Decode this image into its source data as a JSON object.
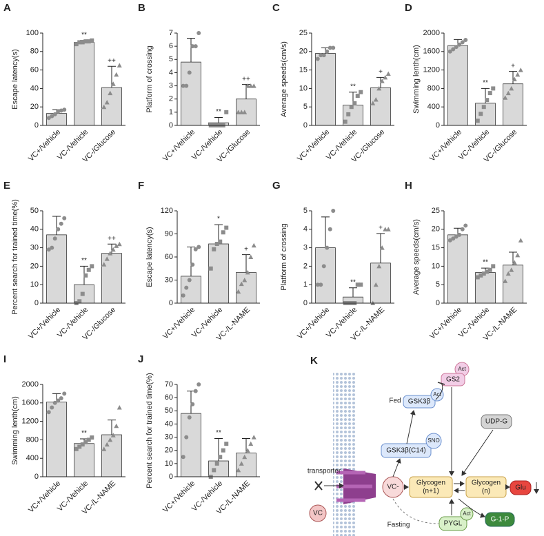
{
  "chart_data": [
    {
      "type": "bar",
      "panel": "A",
      "ylabel": "Escape latency(s)",
      "categories": [
        "VC+/Vehicle",
        "VC-/Vehicle",
        "VC-/Glucose"
      ],
      "values": [
        13,
        90,
        41
      ],
      "errors": [
        4,
        2,
        23
      ],
      "annotations": [
        null,
        "**",
        "++"
      ],
      "points": [
        [
          8,
          10,
          12,
          15,
          16,
          17
        ],
        [
          88,
          90,
          90,
          91,
          91,
          92
        ],
        [
          20,
          25,
          35,
          45,
          55,
          65
        ]
      ],
      "ylim": [
        0,
        100
      ],
      "yticks": [
        0,
        20,
        40,
        60,
        80,
        100
      ],
      "color": "#d9d9d9",
      "point_color": "#8c8c8c"
    },
    {
      "type": "bar",
      "panel": "B",
      "ylabel": "Platform of crossing",
      "categories": [
        "VC+/Vehicle",
        "VC-/Vehicle",
        "VC-/Glucose"
      ],
      "values": [
        4.8,
        0.2,
        2
      ],
      "errors": [
        1.8,
        0.4,
        1.1
      ],
      "annotations": [
        null,
        "**",
        "++"
      ],
      "points": [
        [
          3,
          3,
          4,
          6,
          6,
          7
        ],
        [
          0,
          0,
          0,
          0,
          0,
          1
        ],
        [
          1,
          1,
          1,
          3,
          3,
          3
        ]
      ],
      "ylim": [
        0,
        7
      ],
      "yticks": [
        0,
        1,
        2,
        3,
        4,
        5,
        6,
        7
      ],
      "color": "#d9d9d9",
      "point_color": "#8c8c8c"
    },
    {
      "type": "bar",
      "panel": "C",
      "ylabel": "Average speeds(cm/s)",
      "categories": [
        "VC+/Vehicle",
        "VC-/Vehicle",
        "VC-/Glucose"
      ],
      "values": [
        19.5,
        5.5,
        10.2
      ],
      "errors": [
        1.5,
        3.5,
        2.8
      ],
      "annotations": [
        null,
        "**",
        "+"
      ],
      "points": [
        [
          18,
          19,
          19,
          20,
          21,
          21
        ],
        [
          1,
          3,
          5,
          6,
          8,
          9
        ],
        [
          6,
          7,
          10,
          12,
          13,
          14
        ]
      ],
      "ylim": [
        0,
        25
      ],
      "yticks": [
        0,
        5,
        10,
        15,
        20,
        25
      ],
      "color": "#d9d9d9",
      "point_color": "#8c8c8c"
    },
    {
      "type": "bar",
      "panel": "D",
      "ylabel": "Swimming lenth(cm)",
      "categories": [
        "VC+/Vehicle",
        "VC-/Vehicle",
        "VC-/Glucose"
      ],
      "values": [
        1730,
        480,
        900
      ],
      "errors": [
        130,
        320,
        270
      ],
      "annotations": [
        null,
        "**",
        "+"
      ],
      "points": [
        [
          1600,
          1650,
          1700,
          1750,
          1800,
          1850
        ],
        [
          100,
          250,
          400,
          550,
          700,
          800
        ],
        [
          600,
          700,
          800,
          1000,
          1100,
          1200
        ]
      ],
      "ylim": [
        0,
        2000
      ],
      "yticks": [
        0,
        400,
        800,
        1200,
        1600,
        2000
      ],
      "color": "#d9d9d9",
      "point_color": "#8c8c8c"
    },
    {
      "type": "bar",
      "panel": "E",
      "ylabel": "Percent search for trained time(%)",
      "categories": [
        "VC+/Vehicle",
        "VC-/Vehicle",
        "VC-/Glucose"
      ],
      "values": [
        37,
        10,
        27
      ],
      "errors": [
        10,
        10,
        5
      ],
      "annotations": [
        null,
        "**",
        "++"
      ],
      "points": [
        [
          29,
          30,
          35,
          40,
          43,
          46
        ],
        [
          0,
          1,
          5,
          15,
          18,
          20
        ],
        [
          21,
          24,
          27,
          29,
          31,
          32
        ]
      ],
      "ylim": [
        0,
        50
      ],
      "yticks": [
        0,
        10,
        20,
        30,
        40,
        50
      ],
      "color": "#d9d9d9",
      "point_color": "#8c8c8c"
    },
    {
      "type": "bar",
      "panel": "F",
      "ylabel": "Escape latency(s)",
      "categories": [
        "VC+/Vehicle",
        "VC-/Vehicle",
        "VC-/L-NAME"
      ],
      "values": [
        35,
        77,
        40
      ],
      "errors": [
        38,
        25,
        23
      ],
      "annotations": [
        null,
        "*",
        "+"
      ],
      "points": [
        [
          10,
          20,
          30,
          50,
          70,
          73
        ],
        [
          45,
          70,
          77,
          80,
          92,
          98
        ],
        [
          15,
          25,
          30,
          40,
          60,
          75
        ]
      ],
      "ylim": [
        0,
        120
      ],
      "yticks": [
        0,
        30,
        60,
        90,
        120
      ],
      "color": "#d9d9d9",
      "point_color": "#8c8c8c"
    },
    {
      "type": "bar",
      "panel": "G",
      "ylabel": "Platform of crossing",
      "categories": [
        "VC+/Vehicle",
        "VC-/Vehicle",
        "VC-/L-NAME"
      ],
      "values": [
        3,
        0.33,
        2.17
      ],
      "errors": [
        1.67,
        0.5,
        1.6
      ],
      "annotations": [
        null,
        "**",
        "+"
      ],
      "points": [
        [
          1,
          1,
          2,
          3,
          4,
          5
        ],
        [
          0,
          0,
          0,
          0,
          1,
          1
        ],
        [
          0,
          1,
          2,
          3,
          4,
          4
        ]
      ],
      "ylim": [
        0,
        5
      ],
      "yticks": [
        0,
        1,
        2,
        3,
        4,
        5
      ],
      "color": "#d9d9d9",
      "point_color": "#8c8c8c"
    },
    {
      "type": "bar",
      "panel": "H",
      "ylabel": "Average speeds(cm/s)",
      "categories": [
        "VC+/Vehicle",
        "VC-/Vehicle",
        "VC-/L-NAME"
      ],
      "values": [
        18.5,
        8.3,
        10.3
      ],
      "errors": [
        1.8,
        1.2,
        3.5
      ],
      "annotations": [
        null,
        "**",
        null
      ],
      "points": [
        [
          17,
          17.5,
          18,
          18.5,
          20,
          21
        ],
        [
          7,
          7.5,
          8,
          8.5,
          9,
          10
        ],
        [
          6,
          8,
          9,
          11,
          13,
          17
        ]
      ],
      "ylim": [
        0,
        25
      ],
      "yticks": [
        0,
        5,
        10,
        15,
        20,
        25
      ],
      "color": "#d9d9d9",
      "point_color": "#8c8c8c"
    },
    {
      "type": "bar",
      "panel": "I",
      "ylabel": "Swimming lenth(cm)",
      "categories": [
        "VC+/Vehicle",
        "VC-/Vehicle",
        "VC-/L-NAME"
      ],
      "values": [
        1620,
        720,
        910
      ],
      "errors": [
        180,
        100,
        320
      ],
      "annotations": [
        null,
        "**",
        null
      ],
      "points": [
        [
          1400,
          1500,
          1600,
          1650,
          1700,
          1800
        ],
        [
          600,
          650,
          700,
          750,
          800,
          850
        ],
        [
          600,
          700,
          800,
          900,
          1100,
          1500
        ]
      ],
      "ylim": [
        0,
        2000
      ],
      "yticks": [
        0,
        400,
        800,
        1200,
        1600,
        2000
      ],
      "color": "#d9d9d9",
      "point_color": "#8c8c8c"
    },
    {
      "type": "bar",
      "panel": "J",
      "ylabel": "Percent search for trained time(%)",
      "categories": [
        "VC+/Vehicle",
        "VC-/Vehicle",
        "VC-/L-NAME"
      ],
      "values": [
        48,
        12,
        18
      ],
      "errors": [
        17,
        17,
        11
      ],
      "annotations": [
        null,
        "**",
        null
      ],
      "points": [
        [
          15,
          30,
          45,
          55,
          65,
          70
        ],
        [
          0,
          5,
          10,
          15,
          20,
          25
        ],
        [
          5,
          10,
          15,
          20,
          25,
          30
        ]
      ],
      "ylim": [
        0,
        70
      ],
      "yticks": [
        0,
        10,
        20,
        30,
        40,
        50,
        60,
        70
      ],
      "color": "#d9d9d9",
      "point_color": "#8c8c8c"
    }
  ],
  "diagram": {
    "panel": "K",
    "labels": {
      "act1": "Act",
      "gs2": "GS2",
      "fed": "Fed",
      "gsk": "GSK3β",
      "act2": "Act",
      "gskc": "GSK3β(C14)",
      "sno": "SNO",
      "udpg": "UDP-G",
      "transporter": "transporter",
      "vcminus": "VC-",
      "glyc1": [
        "Glycogen",
        "(n+1)"
      ],
      "glyc2": [
        "Glycogen",
        "(n)"
      ],
      "glu": "Glu",
      "vc": "VC",
      "fasting": "Fasting",
      "pygl": "PYGL",
      "act3": "Act",
      "g1p": "G-1-P"
    }
  }
}
